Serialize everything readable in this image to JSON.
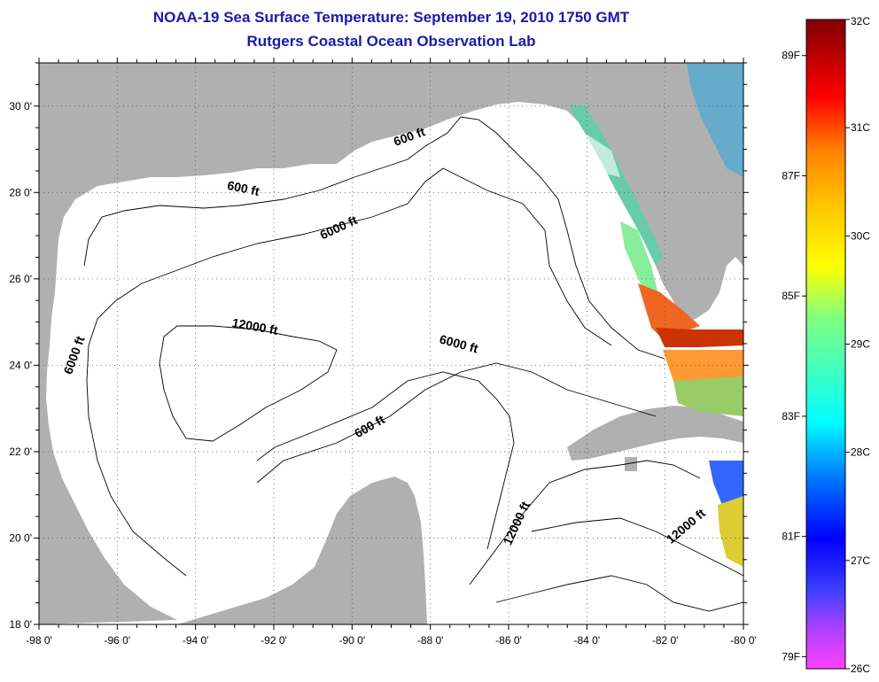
{
  "title": {
    "line1": "NOAA-19 Sea Surface Temperature:  September 19, 2010 1750 GMT",
    "line2": "Rutgers Coastal Ocean Observation Lab"
  },
  "map": {
    "lon_range": [
      -98,
      -80
    ],
    "lat_range": [
      18,
      31
    ],
    "lon_ticks": [
      {
        "value": -98,
        "label": "-98 0'"
      },
      {
        "value": -96,
        "label": "-96 0'"
      },
      {
        "value": -94,
        "label": "-94 0'"
      },
      {
        "value": -92,
        "label": "-92 0'"
      },
      {
        "value": -90,
        "label": "-90 0'"
      },
      {
        "value": -88,
        "label": "-88 0'"
      },
      {
        "value": -86,
        "label": "-86 0'"
      },
      {
        "value": -84,
        "label": "-84 0'"
      },
      {
        "value": -82,
        "label": "-82 0'"
      },
      {
        "value": -80,
        "label": "-80 0'"
      }
    ],
    "lat_ticks": [
      {
        "value": 18,
        "label": "18 0'"
      },
      {
        "value": 20,
        "label": "20 0'"
      },
      {
        "value": 22,
        "label": "22 0'"
      },
      {
        "value": 24,
        "label": "24 0'"
      },
      {
        "value": 26,
        "label": "26 0'"
      },
      {
        "value": 28,
        "label": "28 0'"
      },
      {
        "value": 30,
        "label": "30 0'"
      }
    ],
    "grid": "dotted",
    "land_color": "#b0b0b0",
    "ocean_color": "#ffffff",
    "contour_labels": [
      {
        "text": "600 ft",
        "lon": -92.8,
        "lat": 28.0
      },
      {
        "text": "600 ft",
        "lon": -88.5,
        "lat": 29.2
      },
      {
        "text": "6000 ft",
        "lon": -90.3,
        "lat": 27.1
      },
      {
        "text": "12000 ft",
        "lon": -92.5,
        "lat": 24.8
      },
      {
        "text": "6000 ft",
        "lon": -97.0,
        "lat": 24.2
      },
      {
        "text": "6000 ft",
        "lon": -87.3,
        "lat": 24.4
      },
      {
        "text": "600 ft",
        "lon": -89.5,
        "lat": 22.5
      },
      {
        "text": "12000 ft",
        "lon": -85.7,
        "lat": 20.3
      },
      {
        "text": "12000 ft",
        "lon": -81.4,
        "lat": 20.2
      }
    ]
  },
  "colorbar": {
    "celsius_labels": [
      {
        "label": "32C",
        "value": 32
      },
      {
        "label": "31C",
        "value": 31
      },
      {
        "label": "30C",
        "value": 30
      },
      {
        "label": "29C",
        "value": 29
      },
      {
        "label": "28C",
        "value": 28
      },
      {
        "label": "27C",
        "value": 27
      },
      {
        "label": "26C",
        "value": 26
      }
    ],
    "fahrenheit_labels": [
      {
        "label": "89F",
        "value": 89
      },
      {
        "label": "87F",
        "value": 87
      },
      {
        "label": "85F",
        "value": 85
      },
      {
        "label": "83F",
        "value": 83
      },
      {
        "label": "81F",
        "value": 81
      },
      {
        "label": "79F",
        "value": 79
      }
    ],
    "colors": [
      "#ff40ff",
      "#b040ff",
      "#4040ff",
      "#0000ff",
      "#0080ff",
      "#00c0ff",
      "#00ffff",
      "#40ffc0",
      "#80ff80",
      "#c0ff40",
      "#ffff00",
      "#ffc000",
      "#ff8000",
      "#ff4000",
      "#ff0000",
      "#c00000",
      "#800000"
    ]
  }
}
